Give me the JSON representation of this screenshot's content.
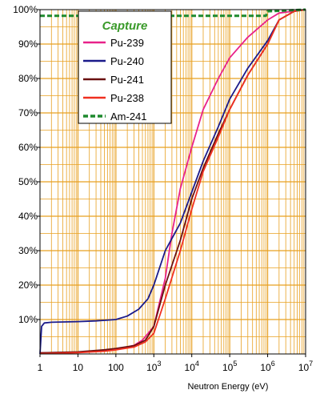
{
  "chart_data": {
    "type": "line",
    "xscale": "log",
    "xlim": [
      1,
      10000000
    ],
    "ylim": [
      0,
      100
    ],
    "xlabel": "Neutron Energy (eV)",
    "ylabel": "",
    "x_tick_labels": [
      {
        "x": 1,
        "base": "1",
        "exp": ""
      },
      {
        "x": 10,
        "base": "10",
        "exp": ""
      },
      {
        "x": 100,
        "base": "100",
        "exp": ""
      },
      {
        "x": 1000,
        "base": "10",
        "exp": "3"
      },
      {
        "x": 10000,
        "base": "10",
        "exp": "4"
      },
      {
        "x": 100000,
        "base": "10",
        "exp": "5"
      },
      {
        "x": 1000000,
        "base": "10",
        "exp": "6"
      },
      {
        "x": 10000000,
        "base": "10",
        "exp": "7"
      }
    ],
    "y_tick_labels": [
      {
        "y": 10,
        "label": "10%"
      },
      {
        "y": 20,
        "label": "20%"
      },
      {
        "y": 30,
        "label": "30%"
      },
      {
        "y": 40,
        "label": "40%"
      },
      {
        "y": 50,
        "label": "50%"
      },
      {
        "y": 60,
        "label": "60%"
      },
      {
        "y": 70,
        "label": "70%"
      },
      {
        "y": 80,
        "label": "80%"
      },
      {
        "y": 90,
        "label": "90%"
      },
      {
        "y": 100,
        "label": "100%"
      }
    ],
    "grid": true,
    "grid_color": "#e8a020",
    "legend": {
      "title": "Capture",
      "title_color": "#3a9a2a",
      "placement": "top-left"
    },
    "series": [
      {
        "name": "Pu-239",
        "color": "#e8228a",
        "dash": "",
        "points": [
          [
            1,
            0.3
          ],
          [
            10,
            0.5
          ],
          [
            30,
            0.8
          ],
          [
            100,
            1.2
          ],
          [
            300,
            2.5
          ],
          [
            500,
            4
          ],
          [
            1000,
            8
          ],
          [
            2000,
            22
          ],
          [
            3000,
            35
          ],
          [
            5000,
            48
          ],
          [
            10000,
            60
          ],
          [
            20000,
            71
          ],
          [
            50000,
            80
          ],
          [
            100000,
            86
          ],
          [
            300000,
            92
          ],
          [
            1000000,
            97
          ],
          [
            2000000,
            99
          ],
          [
            10000000,
            100
          ]
        ]
      },
      {
        "name": "Pu-240",
        "color": "#1a1a8a",
        "dash": "",
        "points": [
          [
            1,
            0
          ],
          [
            1.1,
            8
          ],
          [
            1.3,
            9
          ],
          [
            2,
            9.2
          ],
          [
            10,
            9.4
          ],
          [
            30,
            9.6
          ],
          [
            100,
            10
          ],
          [
            200,
            11
          ],
          [
            400,
            13
          ],
          [
            700,
            16
          ],
          [
            1000,
            20
          ],
          [
            2000,
            30
          ],
          [
            5000,
            38
          ],
          [
            10000,
            47
          ],
          [
            20000,
            56
          ],
          [
            50000,
            66
          ],
          [
            100000,
            74
          ],
          [
            300000,
            83
          ],
          [
            1000000,
            91
          ],
          [
            2000000,
            97
          ],
          [
            5000000,
            99.5
          ],
          [
            10000000,
            100
          ]
        ]
      },
      {
        "name": "Pu-241",
        "color": "#6a1010",
        "dash": "",
        "points": [
          [
            1,
            0.3
          ],
          [
            10,
            0.6
          ],
          [
            50,
            1.2
          ],
          [
            100,
            1.6
          ],
          [
            300,
            2.4
          ],
          [
            600,
            4
          ],
          [
            1000,
            8
          ],
          [
            2000,
            20
          ],
          [
            5000,
            33
          ],
          [
            10000,
            45
          ],
          [
            20000,
            54
          ],
          [
            50000,
            64
          ],
          [
            100000,
            71
          ],
          [
            300000,
            81
          ],
          [
            1000000,
            90
          ],
          [
            2000000,
            97
          ],
          [
            5000000,
            99.5
          ],
          [
            10000000,
            100
          ]
        ]
      },
      {
        "name": "Pu-238",
        "color": "#f03020",
        "dash": "",
        "points": [
          [
            1,
            0.1
          ],
          [
            10,
            0.4
          ],
          [
            50,
            0.8
          ],
          [
            100,
            1.2
          ],
          [
            300,
            2
          ],
          [
            600,
            3.5
          ],
          [
            1000,
            6
          ],
          [
            2000,
            16
          ],
          [
            5000,
            30
          ],
          [
            10000,
            42
          ],
          [
            20000,
            53
          ],
          [
            50000,
            63
          ],
          [
            100000,
            71
          ],
          [
            300000,
            81
          ],
          [
            1000000,
            90
          ],
          [
            2000000,
            97
          ],
          [
            5000000,
            99.5
          ],
          [
            10000000,
            100
          ]
        ]
      },
      {
        "name": "Am-241",
        "color": "#1e8a2e",
        "dash": "6,3",
        "points": [
          [
            1,
            98.2
          ],
          [
            900000,
            98.2
          ],
          [
            1000000,
            99.5
          ],
          [
            10000000,
            100
          ]
        ]
      }
    ]
  }
}
